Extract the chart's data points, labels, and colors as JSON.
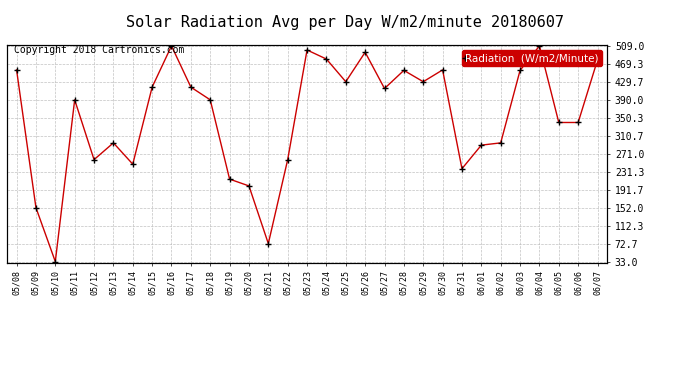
{
  "title": "Solar Radiation Avg per Day W/m2/minute 20180607",
  "copyright": "Copyright 2018 Cartronics.com",
  "legend_label": "Radiation  (W/m2/Minute)",
  "labels": [
    "05/08",
    "05/09",
    "05/10",
    "05/11",
    "05/12",
    "05/13",
    "05/14",
    "05/15",
    "05/16",
    "05/17",
    "05/18",
    "05/19",
    "05/20",
    "05/21",
    "05/22",
    "05/23",
    "05/24",
    "05/25",
    "05/26",
    "05/27",
    "05/28",
    "05/29",
    "05/30",
    "05/31",
    "06/01",
    "06/02",
    "06/03",
    "06/04",
    "06/05",
    "06/06",
    "06/07"
  ],
  "values": [
    456.0,
    152.0,
    33.0,
    390.0,
    258.0,
    295.0,
    248.0,
    418.0,
    509.0,
    418.0,
    390.0,
    215.0,
    200.0,
    72.7,
    258.0,
    500.0,
    480.0,
    430.0,
    495.0,
    415.0,
    455.0,
    430.0,
    456.0,
    238.0,
    290.0,
    295.0,
    455.0,
    509.0,
    340.0,
    340.0,
    478.0
  ],
  "line_color": "#cc0000",
  "marker_color": "#000000",
  "bg_color": "#ffffff",
  "grid_color": "#bbbbbb",
  "yticks": [
    33.0,
    72.7,
    112.3,
    152.0,
    191.7,
    231.3,
    271.0,
    310.7,
    350.3,
    390.0,
    429.7,
    469.3,
    509.0
  ],
  "ylim": [
    33.0,
    509.0
  ],
  "title_fontsize": 11,
  "copyright_fontsize": 7,
  "tick_fontsize": 7,
  "xtick_fontsize": 6,
  "legend_bg": "#cc0000",
  "legend_text_color": "#ffffff",
  "legend_fontsize": 7.5
}
